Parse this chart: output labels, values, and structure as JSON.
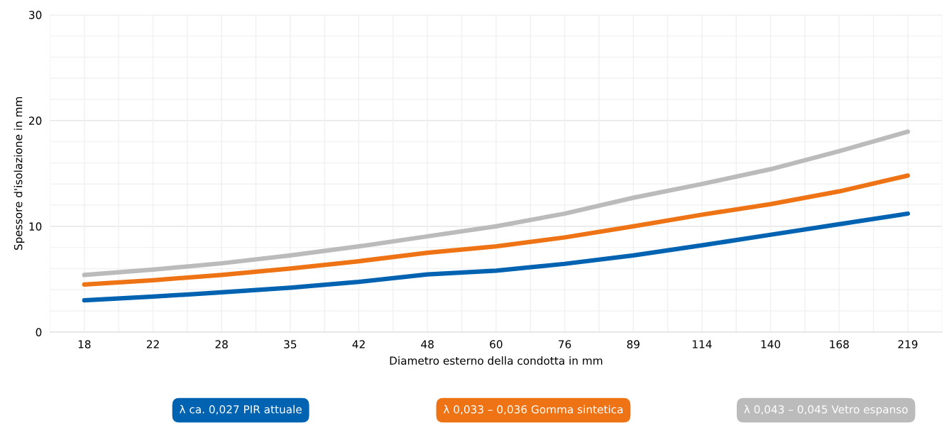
{
  "chart_data": {
    "type": "line",
    "xlabel": "Diametro esterno della condotta in mm",
    "ylabel": "Spessore d'isolazione in mm",
    "categories": [
      "18",
      "22",
      "28",
      "35",
      "42",
      "48",
      "60",
      "76",
      "89",
      "114",
      "140",
      "168",
      "219"
    ],
    "ylim": [
      0,
      30
    ],
    "yticks": [
      0,
      10,
      20,
      30
    ],
    "grid": true,
    "legend": "bottom",
    "marker": "none",
    "line_style": "solid",
    "series": [
      {
        "name": "λ ca. 0,027 PIR attuale",
        "color": "#0063b1",
        "values": [
          3.0,
          3.35,
          3.75,
          4.2,
          4.75,
          5.45,
          5.8,
          6.45,
          7.25,
          8.2,
          9.2,
          10.2,
          11.2
        ]
      },
      {
        "name": "λ 0,033 – 0,036 Gomma sintetica",
        "color": "#ee7314",
        "values": [
          4.5,
          4.9,
          5.4,
          6.0,
          6.7,
          7.5,
          8.1,
          8.95,
          10.0,
          11.1,
          12.1,
          13.3,
          14.8
        ]
      },
      {
        "name": "λ 0,043 – 0,045 Vetro espanso",
        "color": "#bbbbbb",
        "values": [
          5.4,
          5.9,
          6.5,
          7.25,
          8.1,
          9.05,
          10.0,
          11.2,
          12.7,
          14.0,
          15.4,
          17.1,
          18.95
        ]
      }
    ]
  }
}
